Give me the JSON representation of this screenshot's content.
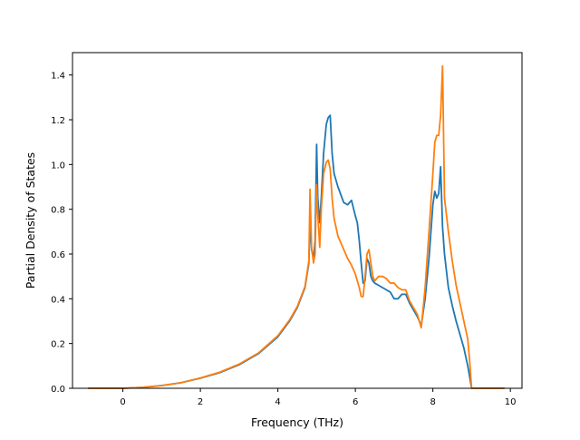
{
  "chart_data": {
    "type": "line",
    "title": "",
    "xlabel": "Frequency (THz)",
    "ylabel": "Partial Density of States",
    "xlim": [
      -1.3,
      10.3
    ],
    "ylim": [
      0.0,
      1.5
    ],
    "xticks": [
      0,
      2,
      4,
      6,
      8,
      10
    ],
    "yticks": [
      0.0,
      0.2,
      0.4,
      0.6,
      0.8,
      1.0,
      1.2,
      1.4
    ],
    "xtick_labels": [
      "0",
      "2",
      "4",
      "6",
      "8",
      "10"
    ],
    "ytick_labels": [
      "0.0",
      "0.2",
      "0.4",
      "0.6",
      "0.8",
      "1.0",
      "1.2",
      "1.4"
    ],
    "grid": false,
    "legend": "none",
    "series": [
      {
        "color": "#1f77b4",
        "x": [
          -0.9,
          0.0,
          0.5,
          1.0,
          1.5,
          2.0,
          2.5,
          3.0,
          3.5,
          4.0,
          4.3,
          4.5,
          4.7,
          4.8,
          4.83,
          4.87,
          4.92,
          4.96,
          5.0,
          5.03,
          5.08,
          5.12,
          5.18,
          5.25,
          5.3,
          5.35,
          5.4,
          5.45,
          5.55,
          5.7,
          5.8,
          5.9,
          6.0,
          6.05,
          6.1,
          6.15,
          6.2,
          6.25,
          6.3,
          6.35,
          6.4,
          6.45,
          6.5,
          6.6,
          6.7,
          6.8,
          6.9,
          7.0,
          7.1,
          7.2,
          7.3,
          7.4,
          7.5,
          7.6,
          7.7,
          7.8,
          7.9,
          8.0,
          8.05,
          8.1,
          8.15,
          8.2,
          8.25,
          8.3,
          8.4,
          8.5,
          8.6,
          8.7,
          8.8,
          8.9,
          8.95,
          9.0,
          9.5,
          9.85
        ],
        "y": [
          0.0,
          0.0,
          0.004,
          0.012,
          0.025,
          0.045,
          0.07,
          0.105,
          0.155,
          0.23,
          0.3,
          0.36,
          0.45,
          0.56,
          0.75,
          0.62,
          0.58,
          0.66,
          1.09,
          0.85,
          0.74,
          0.85,
          1.05,
          1.18,
          1.21,
          1.22,
          1.05,
          0.96,
          0.9,
          0.83,
          0.82,
          0.84,
          0.77,
          0.74,
          0.66,
          0.56,
          0.47,
          0.48,
          0.58,
          0.56,
          0.5,
          0.48,
          0.47,
          0.46,
          0.45,
          0.44,
          0.43,
          0.4,
          0.4,
          0.42,
          0.42,
          0.38,
          0.35,
          0.32,
          0.28,
          0.4,
          0.58,
          0.82,
          0.88,
          0.85,
          0.87,
          0.99,
          0.72,
          0.6,
          0.45,
          0.37,
          0.3,
          0.24,
          0.18,
          0.1,
          0.05,
          0.0,
          0.0,
          0.0
        ]
      },
      {
        "color": "#ff7f0e",
        "x": [
          -0.9,
          0.0,
          0.5,
          1.0,
          1.5,
          2.0,
          2.5,
          3.0,
          3.5,
          4.0,
          4.3,
          4.5,
          4.7,
          4.8,
          4.83,
          4.87,
          4.92,
          4.96,
          5.0,
          5.03,
          5.08,
          5.12,
          5.18,
          5.25,
          5.3,
          5.35,
          5.4,
          5.45,
          5.55,
          5.7,
          5.8,
          5.9,
          6.0,
          6.05,
          6.1,
          6.15,
          6.2,
          6.25,
          6.3,
          6.35,
          6.4,
          6.45,
          6.5,
          6.6,
          6.7,
          6.8,
          6.9,
          7.0,
          7.1,
          7.2,
          7.3,
          7.4,
          7.5,
          7.6,
          7.7,
          7.8,
          7.9,
          8.0,
          8.05,
          8.1,
          8.15,
          8.2,
          8.25,
          8.3,
          8.4,
          8.5,
          8.6,
          8.7,
          8.8,
          8.9,
          8.95,
          9.0,
          9.5,
          9.85
        ],
        "y": [
          0.0,
          0.0,
          0.004,
          0.012,
          0.025,
          0.046,
          0.072,
          0.108,
          0.158,
          0.235,
          0.305,
          0.365,
          0.455,
          0.57,
          0.89,
          0.63,
          0.56,
          0.6,
          0.91,
          0.78,
          0.63,
          0.8,
          0.96,
          1.01,
          1.02,
          0.98,
          0.85,
          0.76,
          0.68,
          0.62,
          0.58,
          0.55,
          0.51,
          0.48,
          0.45,
          0.41,
          0.41,
          0.5,
          0.6,
          0.62,
          0.56,
          0.5,
          0.48,
          0.5,
          0.5,
          0.49,
          0.47,
          0.47,
          0.45,
          0.44,
          0.44,
          0.39,
          0.36,
          0.33,
          0.27,
          0.45,
          0.7,
          0.96,
          1.1,
          1.13,
          1.13,
          1.22,
          1.44,
          0.85,
          0.7,
          0.57,
          0.46,
          0.38,
          0.3,
          0.22,
          0.12,
          0.0,
          0.0,
          0.0
        ]
      }
    ]
  }
}
